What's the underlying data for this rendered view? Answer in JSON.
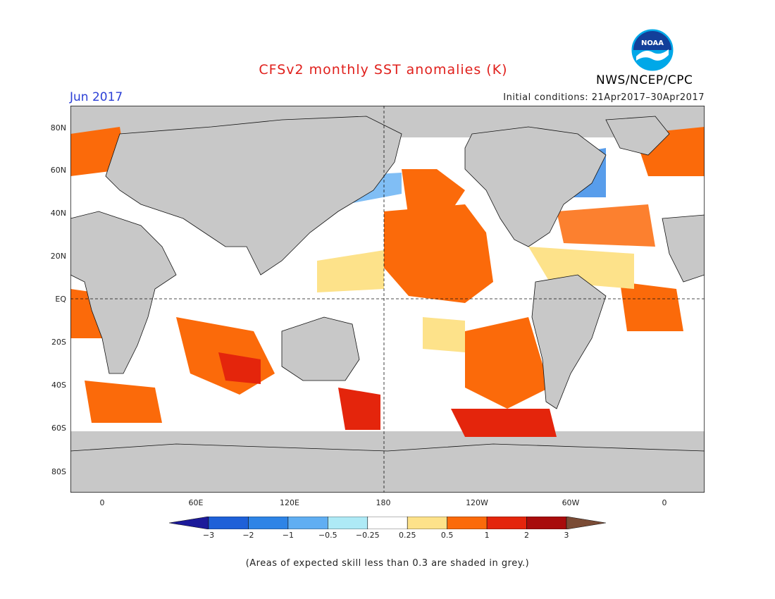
{
  "header": {
    "title": "CFSv2 monthly SST anomalies (K)",
    "month": "Jun 2017",
    "initial_conditions": "Initial conditions: 21Apr2017–30Apr2017",
    "agency": "NWS/NCEP/CPC",
    "logo_text": "NOAA"
  },
  "axes": {
    "lat_labels": [
      "80N",
      "60N",
      "40N",
      "20N",
      "EQ",
      "20S",
      "40S",
      "60S",
      "80S"
    ],
    "lon_labels": [
      "0",
      "60E",
      "120E",
      "180",
      "120W",
      "60W",
      "0"
    ]
  },
  "colorbar": {
    "labels": [
      "−3",
      "−2",
      "−1",
      "−0.5",
      "−0.25",
      "0.25",
      "0.5",
      "1",
      "2",
      "3"
    ],
    "colors": [
      "#1c1a9a",
      "#1e60d8",
      "#2e84e6",
      "#60aef2",
      "#aeeaf6",
      "#ffffff",
      "#fde28a",
      "#fb6a0a",
      "#e4250c",
      "#a80c0c",
      "#7a4b35"
    ]
  },
  "palette": {
    "ocean": "#ffffff",
    "land": "#c8c8c8",
    "low_skill": "#c8c8c8"
  },
  "footnote": "(Areas of expected skill less than 0.3 are shaded in grey.)"
}
